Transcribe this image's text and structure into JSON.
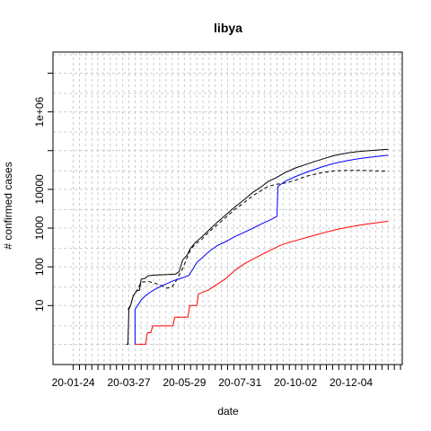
{
  "chart_data": {
    "type": "line",
    "title": "libya",
    "xlabel": "date",
    "ylabel": "# confirmed cases",
    "x_tick_labels": [
      "20-01-24",
      "20-03-27",
      "20-05-29",
      "20-07-31",
      "20-10-02",
      "20-12-04"
    ],
    "x_tick_dates": [
      "2020-01-24",
      "2020-03-27",
      "2020-05-29",
      "2020-07-31",
      "2020-10-02",
      "2020-12-04"
    ],
    "x_minor_tick_interval_days": 7,
    "xlim": [
      "2020-01-01",
      "2021-01-31"
    ],
    "y_scale": "log",
    "y_tick_labels": [
      "10",
      "100",
      "1000",
      "10000",
      "1e+06"
    ],
    "y_tick_values": [
      10,
      100,
      1000,
      10000,
      1000000
    ],
    "y_extra_ticks": [
      100000,
      10000000
    ],
    "ylim": [
      0.3,
      35000000
    ],
    "grid": true,
    "series": [
      {
        "color": "#000000",
        "dash": "solid",
        "points": [
          [
            "2020-03-24",
            1
          ],
          [
            "2020-03-26",
            1
          ],
          [
            "2020-03-27",
            8
          ],
          [
            "2020-03-29",
            10
          ],
          [
            "2020-04-01",
            18
          ],
          [
            "2020-04-05",
            24
          ],
          [
            "2020-04-08",
            25
          ],
          [
            "2020-04-10",
            48
          ],
          [
            "2020-04-14",
            50
          ],
          [
            "2020-04-18",
            59
          ],
          [
            "2020-04-25",
            61
          ],
          [
            "2020-05-10",
            63
          ],
          [
            "2020-05-19",
            65
          ],
          [
            "2020-05-23",
            75
          ],
          [
            "2020-05-27",
            150
          ],
          [
            "2020-06-01",
            200
          ],
          [
            "2020-06-05",
            300
          ],
          [
            "2020-06-10",
            420
          ],
          [
            "2020-06-18",
            600
          ],
          [
            "2020-06-26",
            900
          ],
          [
            "2020-07-05",
            1400
          ],
          [
            "2020-07-15",
            2200
          ],
          [
            "2020-07-25",
            3500
          ],
          [
            "2020-08-05",
            5500
          ],
          [
            "2020-08-15",
            8500
          ],
          [
            "2020-08-25",
            12000
          ],
          [
            "2020-09-01",
            16000
          ],
          [
            "2020-09-10",
            20000
          ],
          [
            "2020-09-20",
            27000
          ],
          [
            "2020-10-01",
            35000
          ],
          [
            "2020-10-15",
            45000
          ],
          [
            "2020-11-01",
            60000
          ],
          [
            "2020-11-15",
            75000
          ],
          [
            "2020-12-01",
            88000
          ],
          [
            "2020-12-15",
            96000
          ],
          [
            "2021-01-01",
            103000
          ],
          [
            "2021-01-15",
            108000
          ]
        ]
      },
      {
        "color": "#000000",
        "dash": "dashed",
        "points": [
          [
            "2020-03-26",
            8
          ],
          [
            "2020-03-29",
            10
          ],
          [
            "2020-04-01",
            18
          ],
          [
            "2020-04-05",
            24
          ],
          [
            "2020-04-10",
            40
          ],
          [
            "2020-04-18",
            42
          ],
          [
            "2020-04-25",
            38
          ],
          [
            "2020-05-03",
            33
          ],
          [
            "2020-05-09",
            28
          ],
          [
            "2020-05-15",
            30
          ],
          [
            "2020-05-20",
            45
          ],
          [
            "2020-05-27",
            90
          ],
          [
            "2020-06-01",
            170
          ],
          [
            "2020-06-05",
            280
          ],
          [
            "2020-06-10",
            380
          ],
          [
            "2020-06-18",
            520
          ],
          [
            "2020-06-26",
            800
          ],
          [
            "2020-07-05",
            1200
          ],
          [
            "2020-07-15",
            1900
          ],
          [
            "2020-07-25",
            3000
          ],
          [
            "2020-08-05",
            4600
          ],
          [
            "2020-08-15",
            7000
          ],
          [
            "2020-08-25",
            9600
          ],
          [
            "2020-09-01",
            12000
          ],
          [
            "2020-09-10",
            13500
          ],
          [
            "2020-09-20",
            14500
          ],
          [
            "2020-10-01",
            17000
          ],
          [
            "2020-10-15",
            22000
          ],
          [
            "2020-11-01",
            27000
          ],
          [
            "2020-11-15",
            30000
          ],
          [
            "2020-12-01",
            31000
          ],
          [
            "2020-12-15",
            31000
          ],
          [
            "2021-01-01",
            30000
          ],
          [
            "2021-01-15",
            29500
          ]
        ]
      },
      {
        "color": "#0000ff",
        "dash": "solid",
        "points": [
          [
            "2020-04-03",
            1
          ],
          [
            "2020-04-03",
            8
          ],
          [
            "2020-04-06",
            10
          ],
          [
            "2020-04-10",
            14
          ],
          [
            "2020-04-15",
            18
          ],
          [
            "2020-04-20",
            22
          ],
          [
            "2020-04-28",
            28
          ],
          [
            "2020-05-08",
            36
          ],
          [
            "2020-05-18",
            45
          ],
          [
            "2020-05-27",
            52
          ],
          [
            "2020-06-03",
            60
          ],
          [
            "2020-06-08",
            90
          ],
          [
            "2020-06-12",
            130
          ],
          [
            "2020-06-18",
            170
          ],
          [
            "2020-06-26",
            250
          ],
          [
            "2020-07-05",
            350
          ],
          [
            "2020-07-15",
            450
          ],
          [
            "2020-07-25",
            600
          ],
          [
            "2020-08-05",
            780
          ],
          [
            "2020-08-15",
            1000
          ],
          [
            "2020-08-25",
            1300
          ],
          [
            "2020-09-05",
            1700
          ],
          [
            "2020-09-11",
            2000
          ],
          [
            "2020-09-12",
            12000
          ],
          [
            "2020-09-20",
            16000
          ],
          [
            "2020-10-01",
            21000
          ],
          [
            "2020-10-15",
            28000
          ],
          [
            "2020-11-01",
            38000
          ],
          [
            "2020-11-15",
            47000
          ],
          [
            "2020-12-01",
            56000
          ],
          [
            "2020-12-15",
            63000
          ],
          [
            "2021-01-01",
            70000
          ],
          [
            "2021-01-15",
            76000
          ]
        ]
      },
      {
        "color": "#ff0000",
        "dash": "solid",
        "points": [
          [
            "2020-04-03",
            1
          ],
          [
            "2020-04-15",
            1
          ],
          [
            "2020-04-17",
            2
          ],
          [
            "2020-04-21",
            2
          ],
          [
            "2020-04-23",
            3
          ],
          [
            "2020-05-16",
            3
          ],
          [
            "2020-05-18",
            5
          ],
          [
            "2020-06-02",
            5
          ],
          [
            "2020-06-04",
            10
          ],
          [
            "2020-06-12",
            10
          ],
          [
            "2020-06-14",
            20
          ],
          [
            "2020-06-25",
            25
          ],
          [
            "2020-07-05",
            35
          ],
          [
            "2020-07-15",
            50
          ],
          [
            "2020-07-25",
            80
          ],
          [
            "2020-08-05",
            120
          ],
          [
            "2020-08-15",
            160
          ],
          [
            "2020-08-25",
            210
          ],
          [
            "2020-09-05",
            280
          ],
          [
            "2020-09-15",
            360
          ],
          [
            "2020-09-25",
            430
          ],
          [
            "2020-10-08",
            520
          ],
          [
            "2020-10-20",
            620
          ],
          [
            "2020-11-05",
            780
          ],
          [
            "2020-11-20",
            950
          ],
          [
            "2020-12-05",
            1100
          ],
          [
            "2020-12-20",
            1250
          ],
          [
            "2021-01-05",
            1400
          ],
          [
            "2021-01-15",
            1500
          ]
        ]
      }
    ]
  }
}
